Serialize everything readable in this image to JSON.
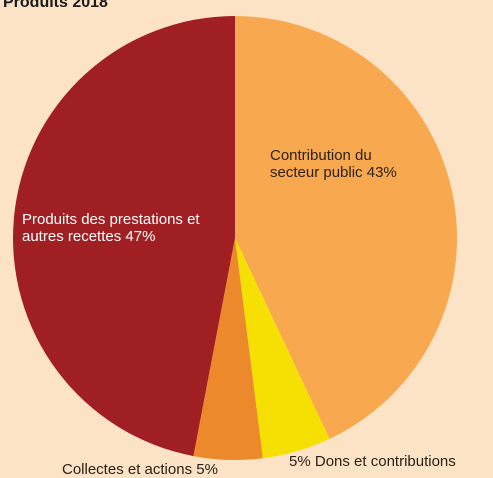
{
  "chart_data": {
    "type": "pie",
    "title": "Produits 2018",
    "categories": [
      "Contribution du secteur public",
      "Dons et contributions",
      "Collectes et actions",
      "Produits des prestations et autres recettes"
    ],
    "values": [
      43,
      5,
      5,
      47
    ],
    "value_labels": [
      "43%",
      "5%",
      "5%",
      "47%"
    ],
    "colors": [
      "#f8a94f",
      "#f6e003",
      "#ec8a2b",
      "#a01f23"
    ]
  }
}
